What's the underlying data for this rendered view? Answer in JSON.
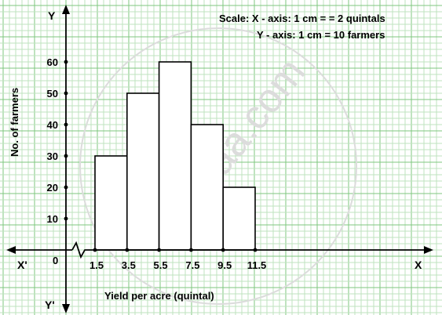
{
  "chart_data": {
    "type": "bar",
    "title": "",
    "scale_note_x": "Scale: X - axis: 1 cm = = 2 quintals",
    "scale_note_y": "Y - axis: 1 cm = 10 farmers",
    "xlabel": "Yield per acre (quintal)",
    "ylabel": "No. of farmers",
    "axis_labels": {
      "x_pos": "X",
      "x_neg": "X'",
      "y_pos": "Y",
      "y_neg": "Y'",
      "origin": "0"
    },
    "x_ticks": [
      "1.5",
      "3.5",
      "5.5",
      "7.5",
      "9.5",
      "11.5"
    ],
    "y_ticks": [
      10,
      20,
      30,
      40,
      50,
      60
    ],
    "categories": [
      "1.5-3.5",
      "3.5-5.5",
      "5.5-7.5",
      "7.5-9.5",
      "9.5-11.5"
    ],
    "bins": [
      [
        1.5,
        3.5
      ],
      [
        3.5,
        5.5
      ],
      [
        5.5,
        7.5
      ],
      [
        7.5,
        9.5
      ],
      [
        9.5,
        11.5
      ]
    ],
    "values": [
      30,
      50,
      60,
      40,
      20
    ],
    "ylim": [
      0,
      60
    ],
    "grid": true,
    "watermark": "shaalaa.com",
    "colors": {
      "grid_minor": "#bfe3bf",
      "grid_major": "#7fc77f",
      "bar_fill": "#ffffff",
      "bar_stroke": "#000000"
    }
  }
}
